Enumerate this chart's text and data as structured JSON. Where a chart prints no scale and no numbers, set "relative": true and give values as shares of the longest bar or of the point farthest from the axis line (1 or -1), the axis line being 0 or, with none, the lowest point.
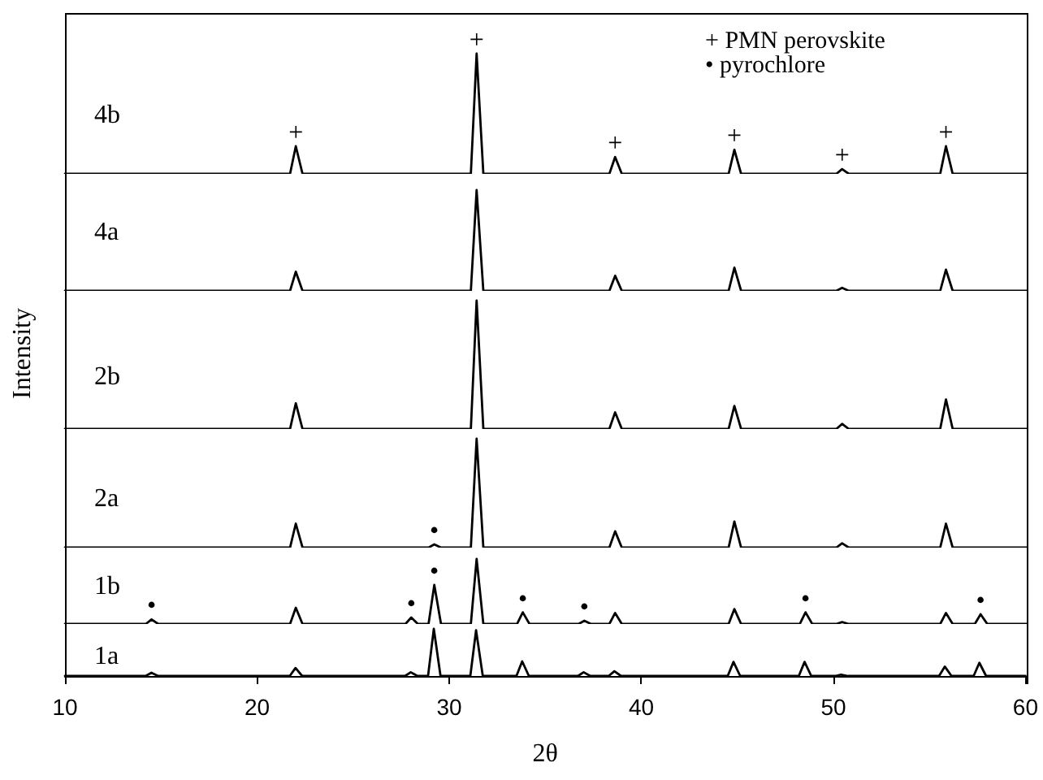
{
  "chart_data": [
    {
      "type": "line",
      "relative": true,
      "xlim": [
        10,
        60
      ],
      "tick_labels": false,
      "series": [
        {
          "name": "4b",
          "color": "#000000",
          "x": [
            10,
            21.7,
            22,
            22.35,
            31.1,
            31.4,
            31.75,
            38.3,
            38.6,
            38.95,
            44.5,
            44.8,
            45.15,
            50.1,
            50.4,
            50.75,
            55.5,
            55.8,
            56.15,
            60
          ],
          "values": [
            0,
            0,
            0.23,
            0,
            0,
            1,
            0,
            0,
            0.14,
            0,
            0,
            0.2,
            0,
            0,
            0.04,
            0,
            0,
            0.23,
            0,
            0
          ]
        }
      ],
      "annotations": [
        "+ PMN perovskite",
        "• pyrochlore",
        {
          "text": "+",
          "x": 22,
          "y": 0.23
        },
        {
          "text": "+",
          "x": 31.4,
          "y": 1
        },
        {
          "text": "+",
          "x": 38.6,
          "y": 0.14
        },
        {
          "text": "+",
          "x": 44.8,
          "y": 0.2
        },
        {
          "text": "+",
          "x": 50.4,
          "y": 0.04
        },
        {
          "text": "+",
          "x": 55.8,
          "y": 0.23
        }
      ]
    },
    {
      "type": "line",
      "relative": true,
      "xlim": [
        10,
        60
      ],
      "tick_labels": false,
      "series": [
        {
          "name": "4a",
          "color": "#000000",
          "x": [
            10,
            21.7,
            22,
            22.35,
            31.1,
            31.4,
            31.75,
            38.3,
            38.6,
            38.95,
            44.5,
            44.8,
            45.15,
            50.1,
            50.4,
            50.75,
            55.5,
            55.8,
            56.15,
            60
          ],
          "values": [
            0,
            0,
            0.19,
            0,
            0,
            1,
            0,
            0,
            0.15,
            0,
            0,
            0.23,
            0,
            0,
            0.03,
            0,
            0,
            0.21,
            0,
            0
          ]
        }
      ]
    },
    {
      "type": "line",
      "relative": true,
      "xlim": [
        10,
        60
      ],
      "tick_labels": false,
      "ylabel": "Intensity",
      "series": [
        {
          "name": "2b",
          "color": "#000000",
          "x": [
            10,
            21.7,
            22,
            22.35,
            31.1,
            31.4,
            31.75,
            38.3,
            38.6,
            38.95,
            44.5,
            44.8,
            45.15,
            50.1,
            50.4,
            50.75,
            55.5,
            55.8,
            56.15,
            60
          ],
          "values": [
            0,
            0,
            0.2,
            0,
            0,
            1,
            0,
            0,
            0.13,
            0,
            0,
            0.18,
            0,
            0,
            0.04,
            0,
            0,
            0.23,
            0,
            0
          ]
        }
      ]
    },
    {
      "type": "line",
      "relative": true,
      "xlim": [
        10,
        60
      ],
      "tick_labels": false,
      "series": [
        {
          "name": "2a",
          "color": "#000000",
          "x": [
            10,
            21.7,
            22,
            22.35,
            28.9,
            29.2,
            29.55,
            31.1,
            31.4,
            31.75,
            38.3,
            38.6,
            38.95,
            44.5,
            44.8,
            45.15,
            50.1,
            50.4,
            50.75,
            55.5,
            55.8,
            56.15,
            60
          ],
          "values": [
            0,
            0,
            0.22,
            0,
            0,
            0.03,
            0,
            0,
            1,
            0,
            0,
            0.15,
            0,
            0,
            0.24,
            0,
            0,
            0.04,
            0,
            0,
            0.22,
            0,
            0
          ]
        }
      ],
      "annotations": [
        {
          "text": "•",
          "x": 29.2,
          "y": 0.03
        }
      ]
    },
    {
      "type": "line",
      "relative": true,
      "xlim": [
        10,
        60
      ],
      "tick_labels": false,
      "series": [
        {
          "name": "1b",
          "color": "#000000",
          "x": [
            10,
            14.2,
            14.5,
            14.85,
            21.7,
            22,
            22.35,
            27.7,
            28,
            28.35,
            28.9,
            29.2,
            29.55,
            31.1,
            31.4,
            31.75,
            33.5,
            33.8,
            34.15,
            36.7,
            37,
            37.35,
            38.3,
            38.6,
            38.95,
            44.5,
            44.8,
            45.15,
            48.2,
            48.5,
            48.85,
            50.1,
            50.4,
            50.75,
            55.5,
            55.8,
            56.15,
            57.3,
            57.6,
            57.95,
            60
          ],
          "values": [
            0,
            0,
            0.07,
            0,
            0,
            0.25,
            0,
            0,
            0.1,
            0,
            0,
            0.6,
            0,
            0,
            1,
            0,
            0,
            0.18,
            0,
            0,
            0.05,
            0,
            0,
            0.17,
            0,
            0,
            0.23,
            0,
            0,
            0.18,
            0,
            0,
            0.03,
            0,
            0,
            0.17,
            0,
            0,
            0.15,
            0,
            0
          ]
        }
      ],
      "annotations": [
        {
          "text": "•",
          "x": 14.5,
          "y": 0.07
        },
        {
          "text": "•",
          "x": 28,
          "y": 0.1
        },
        {
          "text": "•",
          "x": 29.2,
          "y": 0.6
        },
        {
          "text": "•",
          "x": 33.8,
          "y": 0.18
        },
        {
          "text": "•",
          "x": 37,
          "y": 0.05
        },
        {
          "text": "•",
          "x": 48.5,
          "y": 0.18
        },
        {
          "text": "•",
          "x": 57.6,
          "y": 0.15
        }
      ]
    },
    {
      "type": "line",
      "relative": true,
      "xlim": [
        10,
        60
      ],
      "xticks": [
        10,
        20,
        30,
        40,
        50,
        60
      ],
      "tick_labels": "x",
      "xlabel": "2θ",
      "series": [
        {
          "name": "1a",
          "color": "#000000",
          "x": [
            10,
            14.2,
            14.5,
            14.85,
            21.7,
            22,
            22.35,
            27.7,
            28,
            28.35,
            28.9,
            29.2,
            29.55,
            31.1,
            31.4,
            31.75,
            33.5,
            33.8,
            34.15,
            36.7,
            37,
            37.35,
            38.3,
            38.6,
            38.95,
            44.5,
            44.8,
            45.15,
            48.2,
            48.5,
            48.85,
            50.1,
            50.4,
            50.75,
            55.5,
            55.8,
            56.15,
            57.3,
            57.6,
            57.95,
            60
          ],
          "values": [
            0,
            0,
            0.07,
            0,
            0,
            0.17,
            0,
            0,
            0.08,
            0,
            0,
            1,
            0,
            0,
            0.97,
            0,
            0,
            0.31,
            0,
            0,
            0.08,
            0,
            0,
            0.1,
            0,
            0,
            0.3,
            0,
            0,
            0.3,
            0,
            0,
            0.03,
            0,
            0,
            0.2,
            0,
            0,
            0.28,
            0,
            0
          ]
        }
      ]
    }
  ]
}
